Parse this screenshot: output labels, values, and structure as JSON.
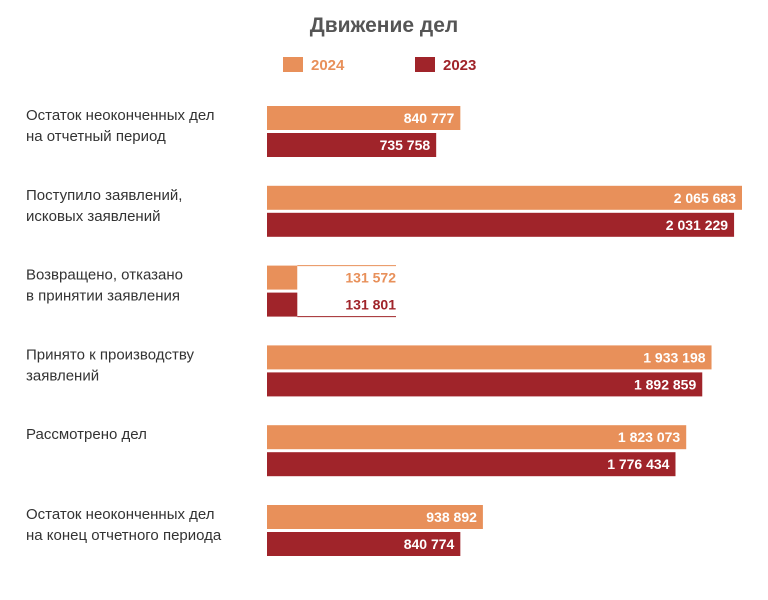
{
  "chart_data": {
    "type": "bar",
    "orientation": "horizontal",
    "title": "Движение дел",
    "legend_position": "top",
    "categories": [
      [
        "Остаток неоконченных дел",
        "на отчетный период"
      ],
      [
        "Поступило заявлений,",
        "исковых заявлений"
      ],
      [
        "Возвращено, отказано",
        "в принятии заявления"
      ],
      [
        "Принято к производству",
        "заявлений"
      ],
      [
        "Рассмотрено дел"
      ],
      [
        "Остаток неоконченных дел",
        "на конец отчетного периода"
      ]
    ],
    "series": [
      {
        "name": "2024",
        "color": "#E8905A",
        "values": [
          840777,
          2065683,
          131572,
          1933198,
          1823073,
          938892
        ],
        "labels": [
          "840 777",
          "2 065 683",
          "131 572",
          "1 933 198",
          "1 823 073",
          "938 892"
        ]
      },
      {
        "name": "2023",
        "color": "#A0242A",
        "values": [
          735758,
          2031229,
          131801,
          1892859,
          1776434,
          840774
        ],
        "labels": [
          "735 758",
          "2 031 229",
          "131 801",
          "1 892 859",
          "1 776 434",
          "840 774"
        ]
      }
    ],
    "xlim": [
      0,
      2200000
    ],
    "grid": false
  }
}
